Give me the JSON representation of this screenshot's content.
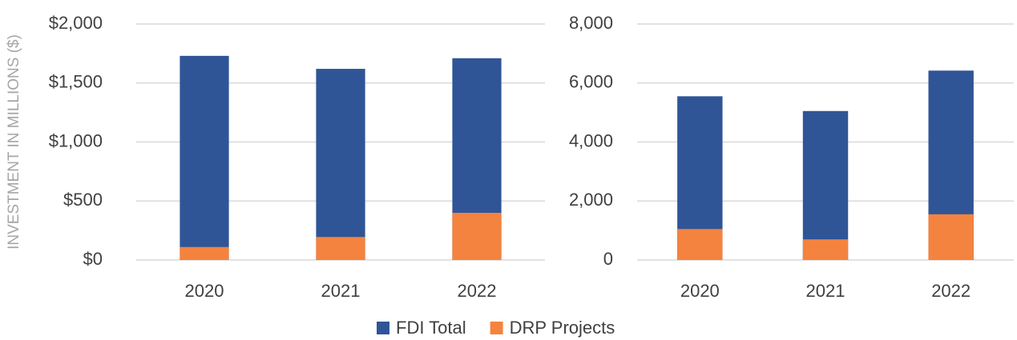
{
  "legend": [
    {
      "name": "FDI Total",
      "color": "#2f5597"
    },
    {
      "name": "DRP Projects",
      "color": "#f4833f"
    }
  ],
  "chart_data": [
    {
      "type": "bar",
      "overlap": true,
      "y_label": "INVESTMENT IN MILLIONS ($)",
      "categories": [
        "2020",
        "2021",
        "2022"
      ],
      "series": [
        {
          "values": [
            1730,
            1620,
            1710
          ]
        },
        {
          "values": [
            110,
            195,
            400
          ]
        }
      ],
      "ylim": [
        0,
        2000
      ],
      "yticks": [
        {
          "value": 0,
          "label": "$0"
        },
        {
          "value": 500,
          "label": "$500"
        },
        {
          "value": 1000,
          "label": "$1,000"
        },
        {
          "value": 1500,
          "label": "$1,500"
        },
        {
          "value": 2000,
          "label": "$2,000"
        }
      ],
      "grid": true
    },
    {
      "type": "bar",
      "overlap": true,
      "categories": [
        "2020",
        "2021",
        "2022"
      ],
      "series": [
        {
          "values": [
            5550,
            5050,
            6420
          ]
        },
        {
          "values": [
            1050,
            700,
            1550
          ]
        }
      ],
      "ylim": [
        0,
        8000
      ],
      "yticks": [
        0,
        {
          "value": 2000,
          "label": "2,000"
        },
        {
          "value": 4000,
          "label": "4,000"
        },
        {
          "value": 6000,
          "label": "6,000"
        },
        {
          "value": 8000,
          "label": "8,000"
        }
      ],
      "grid": true
    }
  ]
}
